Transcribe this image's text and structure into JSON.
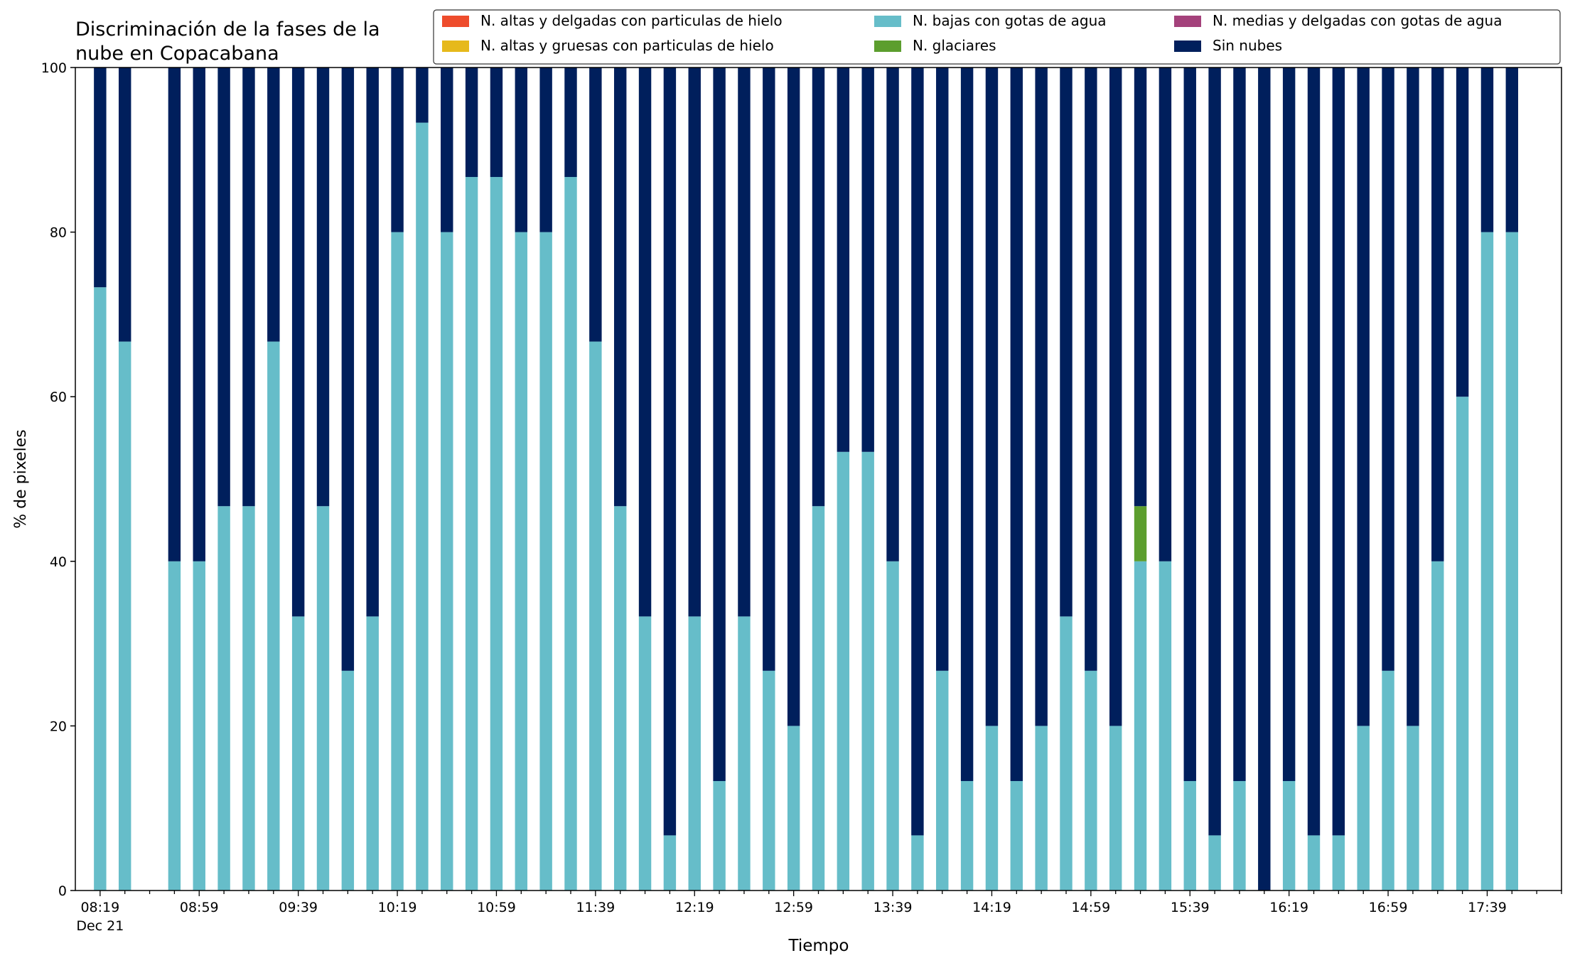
{
  "chart_data": {
    "type": "bar",
    "stacked": true,
    "title": "Discriminación de la fases de la\nnube en Copacabana",
    "xlabel": "Tiempo",
    "ylabel": "% de pixeles",
    "ylim": [
      0,
      100
    ],
    "yticks": [
      0,
      20,
      40,
      60,
      80,
      100
    ],
    "xtick_labels": [
      "08:19",
      "08:59",
      "09:39",
      "10:19",
      "10:59",
      "11:39",
      "12:19",
      "12:59",
      "13:39",
      "14:19",
      "14:59",
      "15:39",
      "16:19",
      "16:59",
      "17:39"
    ],
    "xtick_sublabel": "Dec 21",
    "grid": false,
    "legend_position": "top-right",
    "x_start": "08:19",
    "x_step_minutes": 10,
    "x_count": 59,
    "series": [
      {
        "name": "N. altas y delgadas con particulas de hielo",
        "color": "#ee4c2c"
      },
      {
        "name": "N. altas y gruesas con particulas de hielo",
        "color": "#e6b91b"
      },
      {
        "name": "N. bajas con gotas de agua",
        "color": "#66bdc9"
      },
      {
        "name": "N. glaciares",
        "color": "#5c9e2e"
      },
      {
        "name": "N. medias y delgadas con gotas de agua",
        "color": "#a4417b"
      },
      {
        "name": "Sin nubes",
        "color": "#001f5c"
      }
    ],
    "bars": [
      {
        "x": "08:19",
        "bajas": 73.3,
        "glaciares": 0,
        "sin_nubes": 26.7
      },
      {
        "x": "08:29",
        "bajas": 66.7,
        "glaciares": 0,
        "sin_nubes": 33.3
      },
      {
        "x": "08:49",
        "bajas": 40.0,
        "glaciares": 0,
        "sin_nubes": 60.0
      },
      {
        "x": "08:59",
        "bajas": 40.0,
        "glaciares": 0,
        "sin_nubes": 60.0
      },
      {
        "x": "09:09",
        "bajas": 46.7,
        "glaciares": 0,
        "sin_nubes": 53.3
      },
      {
        "x": "09:19",
        "bajas": 46.7,
        "glaciares": 0,
        "sin_nubes": 53.3
      },
      {
        "x": "09:29",
        "bajas": 66.7,
        "glaciares": 0,
        "sin_nubes": 33.3
      },
      {
        "x": "09:39",
        "bajas": 33.3,
        "glaciares": 0,
        "sin_nubes": 66.7
      },
      {
        "x": "09:49",
        "bajas": 46.7,
        "glaciares": 0,
        "sin_nubes": 53.3
      },
      {
        "x": "09:59",
        "bajas": 26.7,
        "glaciares": 0,
        "sin_nubes": 73.3
      },
      {
        "x": "10:09",
        "bajas": 33.3,
        "glaciares": 0,
        "sin_nubes": 66.7
      },
      {
        "x": "10:19",
        "bajas": 80.0,
        "glaciares": 0,
        "sin_nubes": 20.0
      },
      {
        "x": "10:29",
        "bajas": 93.3,
        "glaciares": 0,
        "sin_nubes": 6.7
      },
      {
        "x": "10:39",
        "bajas": 80.0,
        "glaciares": 0,
        "sin_nubes": 20.0
      },
      {
        "x": "10:49",
        "bajas": 86.7,
        "glaciares": 0,
        "sin_nubes": 13.3
      },
      {
        "x": "10:59",
        "bajas": 86.7,
        "glaciares": 0,
        "sin_nubes": 13.3
      },
      {
        "x": "11:09",
        "bajas": 80.0,
        "glaciares": 0,
        "sin_nubes": 20.0
      },
      {
        "x": "11:19",
        "bajas": 80.0,
        "glaciares": 0,
        "sin_nubes": 20.0
      },
      {
        "x": "11:29",
        "bajas": 86.7,
        "glaciares": 0,
        "sin_nubes": 13.3
      },
      {
        "x": "11:39",
        "bajas": 66.7,
        "glaciares": 0,
        "sin_nubes": 33.3
      },
      {
        "x": "11:49",
        "bajas": 46.7,
        "glaciares": 0,
        "sin_nubes": 53.3
      },
      {
        "x": "11:59",
        "bajas": 33.3,
        "glaciares": 0,
        "sin_nubes": 66.7
      },
      {
        "x": "12:09",
        "bajas": 6.7,
        "glaciares": 0,
        "sin_nubes": 93.3
      },
      {
        "x": "12:19",
        "bajas": 33.3,
        "glaciares": 0,
        "sin_nubes": 66.7
      },
      {
        "x": "12:29",
        "bajas": 13.3,
        "glaciares": 0,
        "sin_nubes": 86.7
      },
      {
        "x": "12:39",
        "bajas": 33.3,
        "glaciares": 0,
        "sin_nubes": 66.7
      },
      {
        "x": "12:49",
        "bajas": 26.7,
        "glaciares": 0,
        "sin_nubes": 73.3
      },
      {
        "x": "12:59",
        "bajas": 20.0,
        "glaciares": 0,
        "sin_nubes": 80.0
      },
      {
        "x": "13:09",
        "bajas": 46.7,
        "glaciares": 0,
        "sin_nubes": 53.3
      },
      {
        "x": "13:19",
        "bajas": 53.3,
        "glaciares": 0,
        "sin_nubes": 46.7
      },
      {
        "x": "13:29",
        "bajas": 53.3,
        "glaciares": 0,
        "sin_nubes": 46.7
      },
      {
        "x": "13:39",
        "bajas": 40.0,
        "glaciares": 0,
        "sin_nubes": 60.0
      },
      {
        "x": "13:49",
        "bajas": 6.7,
        "glaciares": 0,
        "sin_nubes": 93.3
      },
      {
        "x": "13:59",
        "bajas": 26.7,
        "glaciares": 0,
        "sin_nubes": 73.3
      },
      {
        "x": "14:09",
        "bajas": 13.3,
        "glaciares": 0,
        "sin_nubes": 86.7
      },
      {
        "x": "14:19",
        "bajas": 20.0,
        "glaciares": 0,
        "sin_nubes": 80.0
      },
      {
        "x": "14:29",
        "bajas": 13.3,
        "glaciares": 0,
        "sin_nubes": 86.7
      },
      {
        "x": "14:39",
        "bajas": 20.0,
        "glaciares": 0,
        "sin_nubes": 80.0
      },
      {
        "x": "14:49",
        "bajas": 33.3,
        "glaciares": 0,
        "sin_nubes": 66.7
      },
      {
        "x": "14:59",
        "bajas": 26.7,
        "glaciares": 0,
        "sin_nubes": 73.3
      },
      {
        "x": "15:09",
        "bajas": 20.0,
        "glaciares": 0,
        "sin_nubes": 80.0
      },
      {
        "x": "15:19",
        "bajas": 40.0,
        "glaciares": 6.7,
        "sin_nubes": 53.3
      },
      {
        "x": "15:29",
        "bajas": 40.0,
        "glaciares": 0,
        "sin_nubes": 60.0
      },
      {
        "x": "15:39",
        "bajas": 13.3,
        "glaciares": 0,
        "sin_nubes": 86.7
      },
      {
        "x": "15:49",
        "bajas": 6.7,
        "glaciares": 0,
        "sin_nubes": 93.3
      },
      {
        "x": "15:59",
        "bajas": 13.3,
        "glaciares": 0,
        "sin_nubes": 86.7
      },
      {
        "x": "16:09",
        "bajas": 0,
        "glaciares": 0,
        "sin_nubes": 100.0
      },
      {
        "x": "16:19",
        "bajas": 13.3,
        "glaciares": 0,
        "sin_nubes": 86.7
      },
      {
        "x": "16:29",
        "bajas": 6.7,
        "glaciares": 0,
        "sin_nubes": 93.3
      },
      {
        "x": "16:39",
        "bajas": 6.7,
        "glaciares": 0,
        "sin_nubes": 93.3
      },
      {
        "x": "16:49",
        "bajas": 20.0,
        "glaciares": 0,
        "sin_nubes": 80.0
      },
      {
        "x": "16:59",
        "bajas": 26.7,
        "glaciares": 0,
        "sin_nubes": 73.3
      },
      {
        "x": "17:09",
        "bajas": 20.0,
        "glaciares": 0,
        "sin_nubes": 80.0
      },
      {
        "x": "17:19",
        "bajas": 40.0,
        "glaciares": 0,
        "sin_nubes": 60.0
      },
      {
        "x": "17:29",
        "bajas": 60.0,
        "glaciares": 0,
        "sin_nubes": 40.0
      },
      {
        "x": "17:39",
        "bajas": 80.0,
        "glaciares": 0,
        "sin_nubes": 20.0
      },
      {
        "x": "17:49",
        "bajas": 80.0,
        "glaciares": 0,
        "sin_nubes": 20.0
      }
    ]
  }
}
